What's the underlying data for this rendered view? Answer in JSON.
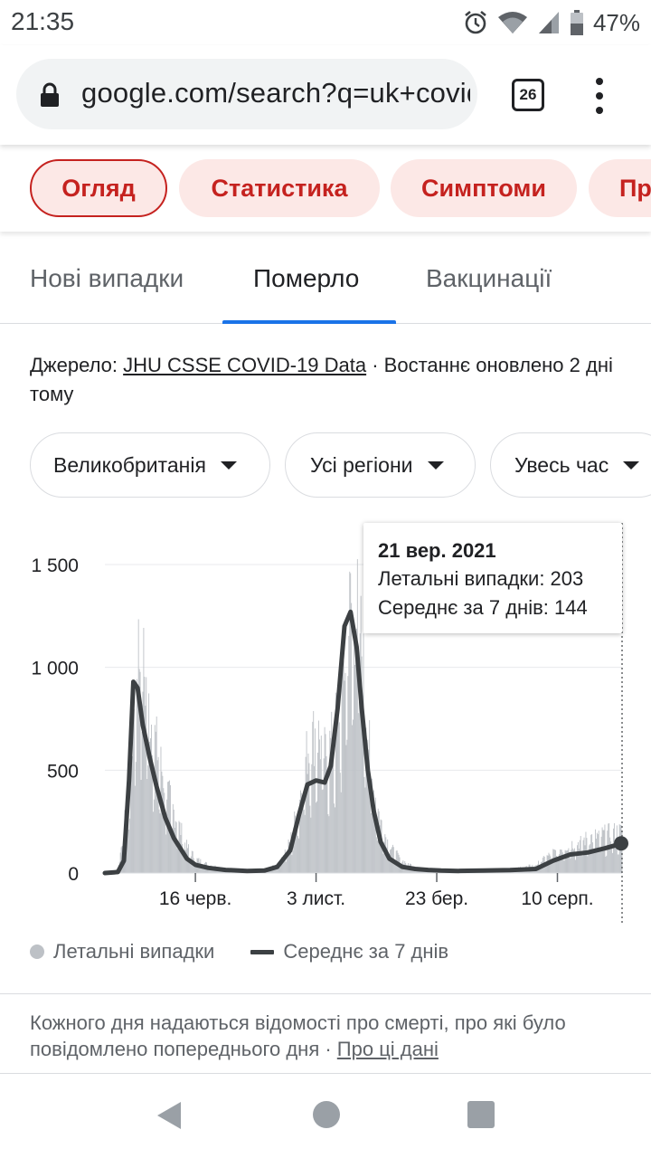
{
  "status_bar": {
    "time": "21:35",
    "battery": "47%",
    "icons": [
      "alarm-icon",
      "wifi-icon",
      "signal-icon",
      "battery-icon"
    ]
  },
  "browser": {
    "url": "google.com/search?q=uk+covid",
    "tab_count": "26",
    "icons": [
      "lock-icon",
      "more-vert-icon"
    ]
  },
  "chips": [
    "Огляд",
    "Статистика",
    "Симптоми",
    "Профілактика"
  ],
  "sub_tabs": {
    "new_cases": "Нові випадки",
    "deaths": "Померло",
    "vaccinations": "Вакцинації"
  },
  "source": {
    "prefix": "Джерело: ",
    "link": "JHU CSSE COVID-19 Data",
    "suffix": " · Востаннє оновлено 2 дні тому"
  },
  "filters": {
    "country": "Великобританія",
    "region": "Усі регіони",
    "period": "Увесь час"
  },
  "tooltip": {
    "date": "21 вер. 2021",
    "deaths_label": "Летальні випадки: 203",
    "avg_label": "Середнє за 7 днів: 144"
  },
  "legend": {
    "bars": "Летальні випадки",
    "line": "Середнє за 7 днів"
  },
  "footnote": {
    "text": "Кожного дня надаються відомості про смерті, про які було повідомлено попереднього дня · ",
    "link": "Про ці дані"
  },
  "colors": {
    "accent": "#c5221f",
    "chip_bg": "#fce8e6",
    "tab_underline": "#1a73e8",
    "bars": "#bdc1c6",
    "line": "#3c4043"
  },
  "chart_data": {
    "type": "bar",
    "y_ticks": [
      0,
      500,
      1000,
      1500
    ],
    "y_tick_labels": [
      "0",
      "500",
      "1 000",
      "1 500"
    ],
    "x_tick_labels": [
      "16 черв.",
      "3 лист.",
      "23 бер.",
      "10 серп."
    ],
    "x_tick_days": [
      105,
      245,
      385,
      525
    ],
    "ylim": [
      0,
      1500
    ],
    "xlim_days": [
      0,
      600
    ],
    "series": [
      {
        "name": "Летальні випадки",
        "kind": "bar",
        "daily_profile_days": [
          0,
          15,
          28,
          38,
          45,
          52,
          60,
          70,
          80,
          95,
          105,
          120,
          140,
          165,
          185,
          200,
          215,
          225,
          235,
          245,
          255,
          265,
          275,
          285,
          295,
          305,
          310,
          320,
          330,
          345,
          360,
          375,
          390,
          410,
          440,
          470,
          500,
          510,
          520,
          530,
          540,
          550,
          560,
          570,
          580,
          590,
          600
        ],
        "daily_profile_values": [
          0,
          5,
          400,
          1100,
          1000,
          780,
          620,
          430,
          300,
          130,
          70,
          40,
          20,
          12,
          15,
          40,
          150,
          350,
          600,
          700,
          580,
          650,
          900,
          1300,
          1250,
          700,
          450,
          250,
          130,
          60,
          30,
          20,
          15,
          15,
          15,
          15,
          40,
          70,
          100,
          120,
          140,
          150,
          170,
          180,
          190,
          200,
          203
        ]
      },
      {
        "name": "Середнє за 7 днів",
        "kind": "line",
        "x_days": [
          0,
          15,
          22,
          28,
          33,
          38,
          44,
          52,
          60,
          70,
          80,
          95,
          105,
          120,
          140,
          165,
          185,
          200,
          215,
          225,
          235,
          245,
          255,
          262,
          270,
          278,
          285,
          292,
          298,
          305,
          312,
          320,
          330,
          345,
          360,
          375,
          390,
          410,
          440,
          470,
          500,
          520,
          540,
          560,
          580,
          600
        ],
        "y": [
          0,
          5,
          60,
          450,
          930,
          900,
          720,
          560,
          420,
          270,
          170,
          70,
          40,
          25,
          15,
          10,
          12,
          30,
          110,
          280,
          430,
          450,
          440,
          520,
          800,
          1200,
          1270,
          1100,
          800,
          500,
          300,
          150,
          70,
          30,
          20,
          15,
          12,
          10,
          12,
          14,
          20,
          60,
          90,
          100,
          120,
          144
        ]
      }
    ],
    "highlight": {
      "x_day": 600,
      "deaths": 203,
      "avg": 144,
      "date": "21 вер. 2021"
    }
  }
}
